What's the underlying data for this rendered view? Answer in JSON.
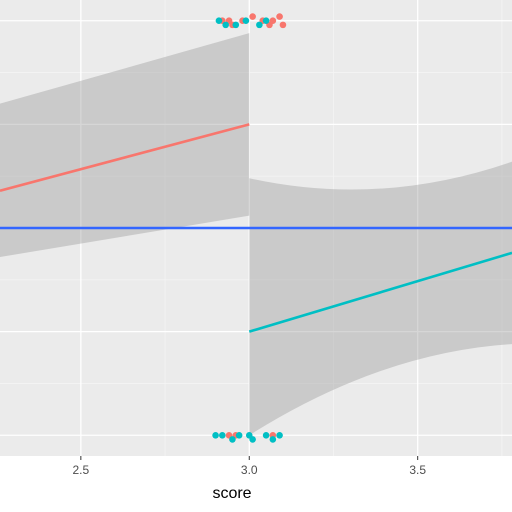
{
  "chart_data": {
    "type": "scatter",
    "title": "",
    "xlabel": "score",
    "ylabel": "",
    "x_ticks": [
      "2.5",
      "3.0",
      "3.5"
    ],
    "x_tick_values": [
      2.5,
      3.0,
      3.5
    ],
    "xlim": [
      2.26,
      3.78
    ],
    "ylim": [
      -0.05,
      1.05
    ],
    "y_gridlines": [
      0.0,
      0.25,
      0.5,
      0.75,
      1.0
    ],
    "grid": true,
    "legend": "none",
    "cutoff": 3.0,
    "series": [
      {
        "color": "#F8766D",
        "points": [
          {
            "x": 2.92,
            "y": 1.0
          },
          {
            "x": 2.94,
            "y": 1.0
          },
          {
            "x": 2.95,
            "y": 0.99
          },
          {
            "x": 2.98,
            "y": 1.0
          },
          {
            "x": 3.01,
            "y": 1.01
          },
          {
            "x": 3.04,
            "y": 1.0
          },
          {
            "x": 3.06,
            "y": 0.99
          },
          {
            "x": 3.07,
            "y": 1.0
          },
          {
            "x": 3.09,
            "y": 1.01
          },
          {
            "x": 3.1,
            "y": 0.99
          },
          {
            "x": 2.94,
            "y": 0.0
          },
          {
            "x": 2.96,
            "y": 0.0
          },
          {
            "x": 3.07,
            "y": 0.0
          }
        ],
        "fit": {
          "x": [
            2.26,
            3.0
          ],
          "y": [
            0.59,
            0.75
          ]
        }
      },
      {
        "color": "#00BFC4",
        "points": [
          {
            "x": 2.91,
            "y": 1.0
          },
          {
            "x": 2.93,
            "y": 0.99
          },
          {
            "x": 2.96,
            "y": 0.99
          },
          {
            "x": 2.99,
            "y": 1.0
          },
          {
            "x": 3.03,
            "y": 0.99
          },
          {
            "x": 3.05,
            "y": 1.0
          },
          {
            "x": 2.9,
            "y": 0.0
          },
          {
            "x": 2.92,
            "y": 0.0
          },
          {
            "x": 2.95,
            "y": -0.01
          },
          {
            "x": 2.97,
            "y": 0.0
          },
          {
            "x": 3.0,
            "y": 0.0
          },
          {
            "x": 3.01,
            "y": -0.01
          },
          {
            "x": 3.05,
            "y": 0.0
          },
          {
            "x": 3.07,
            "y": -0.01
          },
          {
            "x": 3.09,
            "y": 0.0
          }
        ],
        "fit": {
          "x": [
            3.0,
            3.78
          ],
          "y": [
            0.25,
            0.44
          ]
        }
      }
    ],
    "reference_line": {
      "color": "#3366FF",
      "y": 0.5
    },
    "ribbons": [
      {
        "x": [
          2.26,
          3.0
        ],
        "upper_left": 0.8,
        "lower_left": 0.43,
        "upper_right": 0.97,
        "lower_right": 0.53
      },
      {
        "x": [
          3.0,
          3.78
        ],
        "upper_left": 0.62,
        "lower_left": 0.0,
        "upper_right": 0.66,
        "lower_right": 0.22
      }
    ]
  }
}
